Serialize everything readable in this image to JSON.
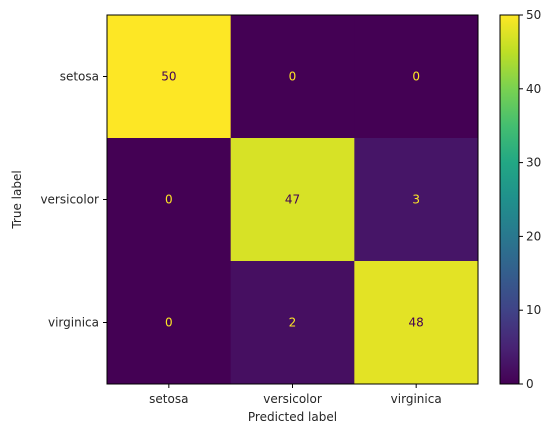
{
  "chart_data": {
    "type": "heatmap",
    "title": "",
    "xlabel": "Predicted label",
    "ylabel": "True label",
    "x_categories": [
      "setosa",
      "versicolor",
      "virginica"
    ],
    "y_categories": [
      "setosa",
      "versicolor",
      "virginica"
    ],
    "values": [
      [
        50,
        0,
        0
      ],
      [
        0,
        47,
        3
      ],
      [
        0,
        2,
        48
      ]
    ],
    "colorbar": {
      "range": [
        0,
        50
      ],
      "ticks": [
        0,
        10,
        20,
        30,
        40,
        50
      ],
      "colormap": "viridis"
    },
    "text_colors": {
      "on_dark": "#fde725",
      "on_light": "#440154"
    },
    "grid": false
  }
}
